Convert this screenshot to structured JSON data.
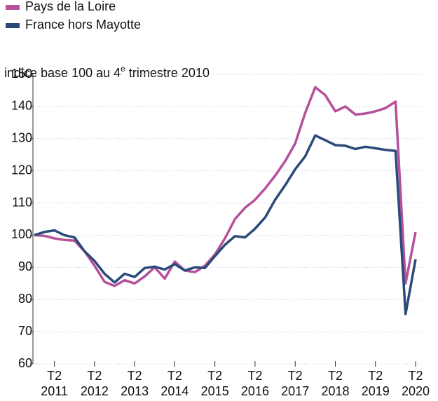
{
  "chart_data": {
    "type": "line",
    "subtitle_parts": [
      "indice base 100 au 4",
      "e",
      " trimestre 2010"
    ],
    "quarter_label": "T2",
    "categories": [
      null,
      null,
      "2011",
      null,
      null,
      null,
      "2012",
      null,
      null,
      null,
      "2013",
      null,
      null,
      null,
      "2014",
      null,
      null,
      null,
      "2015",
      null,
      null,
      null,
      "2016",
      null,
      null,
      null,
      "2017",
      null,
      null,
      null,
      "2018",
      null,
      null,
      null,
      "2019",
      null,
      null,
      null,
      "2020"
    ],
    "series": [
      {
        "name": "Pays de la Loire",
        "color": "#b5509b",
        "values": [
          100,
          99.8,
          99,
          98.5,
          98.3,
          95,
          90.5,
          85.5,
          84.2,
          86,
          85,
          87.2,
          90,
          86.5,
          91.8,
          89,
          88.5,
          90.5,
          94,
          99,
          105,
          108.5,
          111,
          114.5,
          118.5,
          123,
          128.5,
          138,
          146,
          143.5,
          138.5,
          140,
          137.5,
          137.8,
          138.5,
          139.5,
          141.5,
          85,
          101
        ]
      },
      {
        "name": "France hors Mayotte",
        "color": "#2b4a7a",
        "values": [
          100,
          101,
          101.5,
          100,
          99.3,
          95,
          92,
          88,
          85.3,
          88,
          87,
          89.8,
          90.2,
          89.3,
          91,
          89,
          90,
          89.8,
          93.5,
          97,
          99.7,
          99.3,
          102,
          105.5,
          111,
          115.5,
          120.5,
          124.5,
          131,
          129.5,
          128,
          127.8,
          126.8,
          127.5,
          127,
          126.5,
          126.2,
          75.5,
          92.5
        ]
      }
    ],
    "ylim": [
      60,
      150
    ],
    "yticks": [
      60,
      70,
      80,
      90,
      100,
      110,
      120,
      130,
      140,
      150
    ],
    "grid": true
  }
}
